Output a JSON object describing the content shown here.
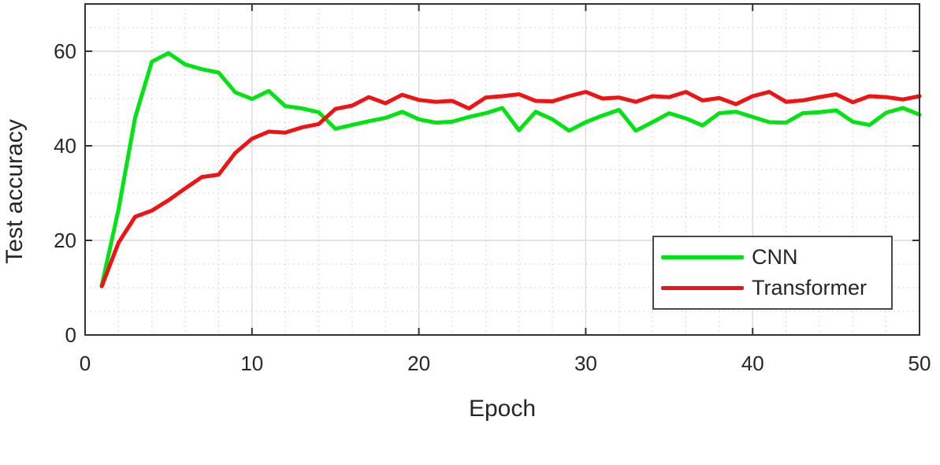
{
  "chart_data": {
    "type": "line",
    "title": "",
    "xlabel": "Epoch",
    "ylabel": "Test accuracy",
    "xlim": [
      0,
      50
    ],
    "ylim": [
      0,
      70
    ],
    "x_ticks": [
      0,
      10,
      20,
      30,
      40,
      50
    ],
    "y_ticks": [
      0,
      20,
      40,
      60
    ],
    "x_minor_step": 2,
    "y_minor_step": 5,
    "grid": "on",
    "minor_grid": "on",
    "legend_position": "southeast",
    "x": [
      1,
      2,
      3,
      4,
      5,
      6,
      7,
      8,
      9,
      10,
      11,
      12,
      13,
      14,
      15,
      16,
      17,
      18,
      19,
      20,
      21,
      22,
      23,
      24,
      25,
      26,
      27,
      28,
      29,
      30,
      31,
      32,
      33,
      34,
      35,
      36,
      37,
      38,
      39,
      40,
      41,
      42,
      43,
      44,
      45,
      46,
      47,
      48,
      49,
      50
    ],
    "series": [
      {
        "name": "CNN",
        "color": "#00e213",
        "values": [
          10.5,
          26.5,
          46.0,
          57.8,
          59.6,
          57.2,
          56.2,
          55.5,
          51.3,
          49.9,
          51.6,
          48.4,
          47.9,
          47.1,
          43.6,
          44.4,
          45.2,
          45.9,
          47.2,
          45.6,
          44.9,
          45.1,
          46.1,
          46.9,
          48.0,
          43.3,
          47.2,
          45.6,
          43.2,
          45.0,
          46.4,
          47.6,
          43.2,
          45.0,
          46.9,
          45.8,
          44.3,
          46.9,
          47.2,
          46.1,
          45.0,
          44.9,
          46.9,
          47.1,
          47.5,
          45.1,
          44.4,
          47.0,
          48.0,
          46.6
        ]
      },
      {
        "name": "Transformer",
        "color": "#ef1414",
        "values": [
          10.3,
          19.5,
          25.0,
          26.3,
          28.5,
          31.0,
          33.4,
          33.9,
          38.5,
          41.5,
          43.0,
          42.8,
          43.9,
          44.6,
          47.8,
          48.5,
          50.3,
          49.0,
          50.8,
          49.7,
          49.3,
          49.5,
          47.9,
          50.2,
          50.5,
          50.9,
          49.5,
          49.4,
          50.5,
          51.4,
          50.0,
          50.2,
          49.3,
          50.5,
          50.3,
          51.4,
          49.6,
          50.1,
          48.8,
          50.5,
          51.4,
          49.3,
          49.6,
          50.3,
          50.9,
          49.2,
          50.5,
          50.3,
          49.8,
          50.5
        ]
      }
    ]
  }
}
